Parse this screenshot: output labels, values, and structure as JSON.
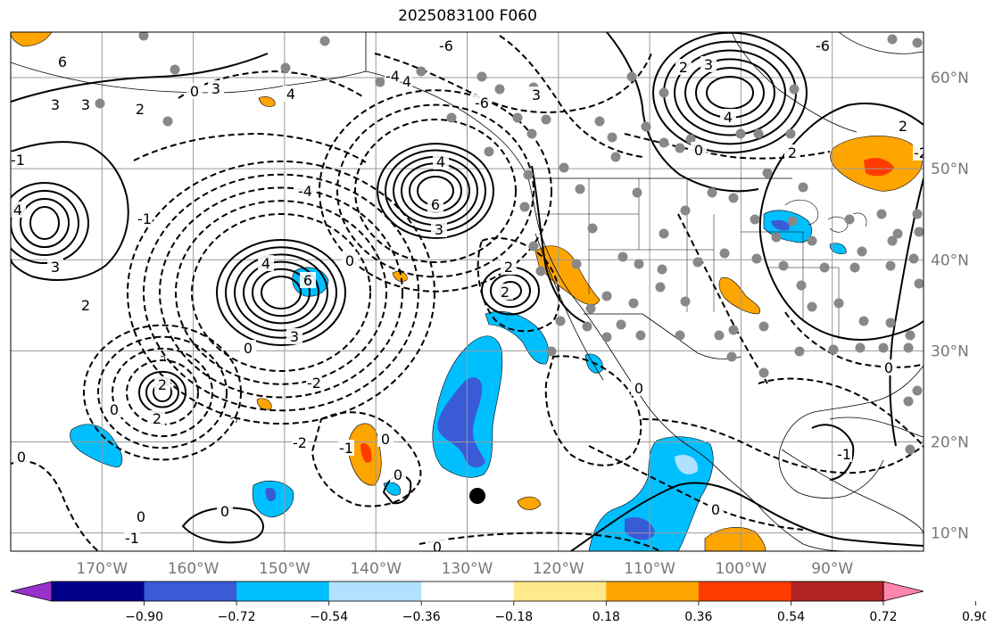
{
  "title": "2025083100 F060",
  "map": {
    "projection": "PlateCarree",
    "extent": {
      "lon": [
        -180,
        -80
      ],
      "lat": [
        8,
        65
      ]
    },
    "lon_ticks": [
      {
        "lon": -170,
        "label": "170°W"
      },
      {
        "lon": -160,
        "label": "160°W"
      },
      {
        "lon": -150,
        "label": "150°W"
      },
      {
        "lon": -140,
        "label": "140°W"
      },
      {
        "lon": -130,
        "label": "130°W"
      },
      {
        "lon": -120,
        "label": "120°W"
      },
      {
        "lon": -110,
        "label": "110°W"
      },
      {
        "lon": -100,
        "label": "100°W"
      },
      {
        "lon": -90,
        "label": "90°W"
      }
    ],
    "lat_ticks": [
      {
        "lat": 60,
        "label": "60°N"
      },
      {
        "lat": 50,
        "label": "50°N"
      },
      {
        "lat": 40,
        "label": "40°N"
      },
      {
        "lat": 30,
        "label": "30°N"
      },
      {
        "lat": 20,
        "label": "20°N"
      },
      {
        "lat": 10,
        "label": "10°N"
      }
    ],
    "gridlines": true,
    "gridline_color": "#999999",
    "coastline_color": "#000000"
  },
  "colorbar": {
    "orientation": "horizontal",
    "extend": "both",
    "levels": [
      -1.08,
      -0.9,
      -0.72,
      -0.54,
      -0.36,
      -0.18,
      0.18,
      0.36,
      0.54,
      0.72,
      0.9,
      1.08
    ],
    "tick_labels": [
      "−0.90",
      "−0.72",
      "−0.54",
      "−0.36",
      "−0.18",
      "0.18",
      "0.36",
      "0.54",
      "0.72",
      "0.90"
    ],
    "colors": [
      "#9932cc",
      "#00008b",
      "#3a5bd6",
      "#00bfff",
      "#b0e2ff",
      "#ffffff",
      "#ffe98a",
      "#ffa500",
      "#ff3c00",
      "#b22222",
      "#ff85ad"
    ]
  },
  "contour_values": [
    "0",
    "1",
    "2",
    "3",
    "4",
    "6",
    "-1",
    "-2",
    "-3",
    "-4",
    "-6"
  ],
  "markers": {
    "station_color": "#888888",
    "highlight_color": "#000000"
  }
}
